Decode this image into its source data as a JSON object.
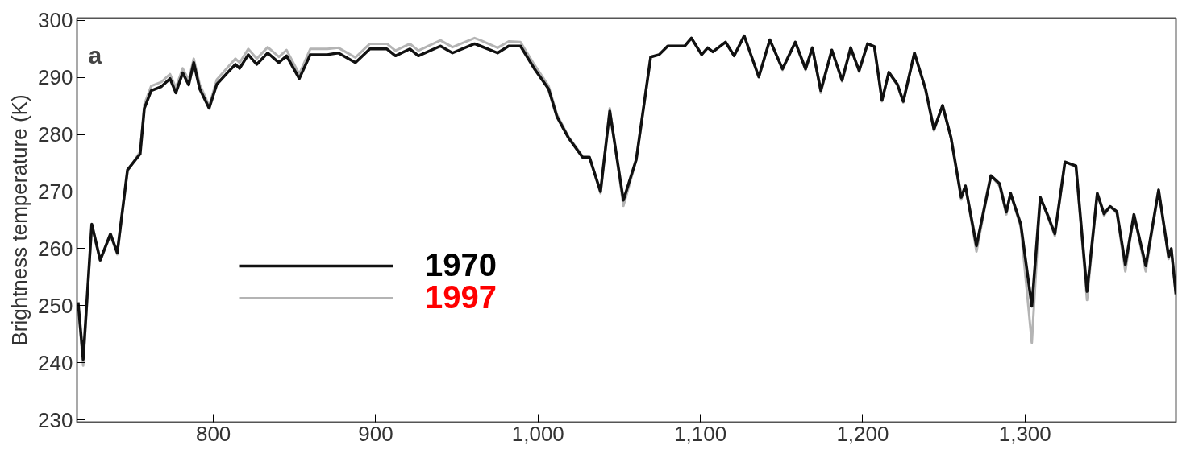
{
  "chart_data": {
    "type": "line",
    "ylabel": "Brightness temperature (K)",
    "annotations": [
      "a"
    ],
    "x": [
      716.7,
      719.8,
      725.1,
      730.3,
      736.6,
      740.8,
      747.1,
      754.9,
      757.5,
      761.7,
      768,
      773.3,
      776.9,
      781.1,
      784.8,
      787.9,
      791.6,
      797.4,
      802.1,
      808.9,
      813.6,
      816.2,
      821.5,
      826.7,
      833.5,
      840.4,
      845.1,
      852.9,
      859.7,
      870.2,
      877,
      887.5,
      896.4,
      906.9,
      912.2,
      921.1,
      926.3,
      939.9,
      947.3,
      960.9,
      964.6,
      975.1,
      981.9,
      989.2,
      997.6,
      1006.5,
      1011.7,
      1018.6,
      1027.5,
      1031.7,
      1038.5,
      1044.2,
      1052.6,
      1060.5,
      1069.4,
      1074.6,
      1079.9,
      1090.4,
      1094.5,
      1100.8,
      1104.5,
      1107.7,
      1115.5,
      1120.8,
      1127,
      1136,
      1142.8,
      1150.6,
      1158.5,
      1164.8,
      1169,
      1174.2,
      1181,
      1187.3,
      1192.6,
      1197.8,
      1203,
      1207.2,
      1211.9,
      1216.1,
      1221.4,
      1225,
      1231.9,
      1238.7,
      1243.9,
      1249.2,
      1254.4,
      1260.7,
      1263.3,
      1270.1,
      1279,
      1284.3,
      1288.5,
      1291.1,
      1297.4,
      1304.2,
      1309.4,
      1314.2,
      1318.4,
      1324.6,
      1331.4,
      1338.2,
      1344.5,
      1348.7,
      1352.4,
      1356.6,
      1361.8,
      1367.1,
      1374.4,
      1382.3,
      1388.5,
      1390.1,
      1393
    ],
    "series": [
      {
        "name": "1970",
        "color": "#111111",
        "values": [
          250.6,
          240.6,
          264.3,
          258,
          262.6,
          259.3,
          273.8,
          276.6,
          284.6,
          287.7,
          288.4,
          289.8,
          287.3,
          290.8,
          288.7,
          292.6,
          288,
          284.6,
          288.8,
          290.9,
          292.3,
          291.6,
          294,
          292.3,
          294.3,
          292.6,
          293.8,
          289.8,
          294,
          294,
          294.3,
          292.6,
          295,
          295,
          293.8,
          295,
          293.8,
          295.5,
          294.3,
          295.9,
          295.5,
          294.3,
          295.5,
          295.5,
          291.6,
          288,
          283.1,
          279.5,
          276,
          276,
          270,
          284.1,
          268.5,
          275.6,
          293.6,
          294,
          295.5,
          295.5,
          296.9,
          294,
          295.2,
          294.5,
          296.2,
          293.8,
          297.3,
          290.1,
          296.6,
          291.5,
          296.2,
          291.5,
          295.2,
          287.7,
          294.8,
          289.5,
          295.2,
          291.2,
          295.9,
          295.4,
          286,
          290.9,
          288.8,
          285.8,
          294.3,
          288,
          280.9,
          285.1,
          279.5,
          269,
          271,
          260.5,
          272.8,
          271.4,
          266.4,
          269.7,
          264.3,
          249.9,
          269,
          265.7,
          262.6,
          275.2,
          274.5,
          252.5,
          269.7,
          266.1,
          267.4,
          266.5,
          257.2,
          266,
          257,
          270.3,
          258.6,
          260,
          252
        ]
      },
      {
        "name": "1997",
        "color": "#b4b4b4",
        "values": [
          250.2,
          239.5,
          264,
          257.8,
          262.4,
          259,
          273.6,
          277,
          285.3,
          288.5,
          289.2,
          290.6,
          288.2,
          291.6,
          289.5,
          293.3,
          288.8,
          285,
          289.6,
          291.8,
          293.3,
          292.6,
          295,
          293.3,
          295.3,
          293.6,
          294.8,
          290.6,
          295,
          295,
          295.2,
          293.5,
          295.9,
          295.9,
          294.7,
          295.9,
          294.7,
          296.5,
          295.3,
          296.9,
          296.5,
          295.2,
          296.3,
          296.2,
          292.3,
          288.5,
          283.5,
          279.7,
          276.2,
          276.1,
          269.7,
          284.6,
          267.5,
          275.5,
          293.6,
          294,
          295.5,
          295.5,
          296.9,
          294,
          295.2,
          294.5,
          296.2,
          293.8,
          297.3,
          290,
          296.6,
          291.3,
          296.2,
          291.3,
          295.2,
          287.3,
          294.8,
          289.3,
          295.2,
          291,
          295.9,
          295.4,
          285.8,
          290.9,
          288.6,
          285.6,
          294.3,
          287.8,
          280.7,
          285.1,
          279.3,
          268.6,
          271,
          259.5,
          272.8,
          271,
          266,
          269.7,
          263.8,
          243.5,
          269,
          265.5,
          262.2,
          275.2,
          274.3,
          251,
          269.7,
          265.8,
          267.4,
          266.2,
          256,
          266,
          256,
          270.3,
          258.2,
          260,
          251.8
        ]
      }
    ],
    "xlim": [
      716,
      1393
    ],
    "ylim": [
      229.6,
      300.4
    ],
    "xticks": [
      800,
      900,
      {
        "value": 1000,
        "label": "1,000"
      },
      {
        "value": 1100,
        "label": "1,100"
      },
      {
        "value": 1200,
        "label": "1,200"
      },
      {
        "value": 1300,
        "label": "1,300"
      }
    ],
    "yticks": [
      230,
      240,
      250,
      260,
      270,
      280,
      290,
      300
    ],
    "legend": "left",
    "grid": false,
    "line_style": "solid"
  }
}
